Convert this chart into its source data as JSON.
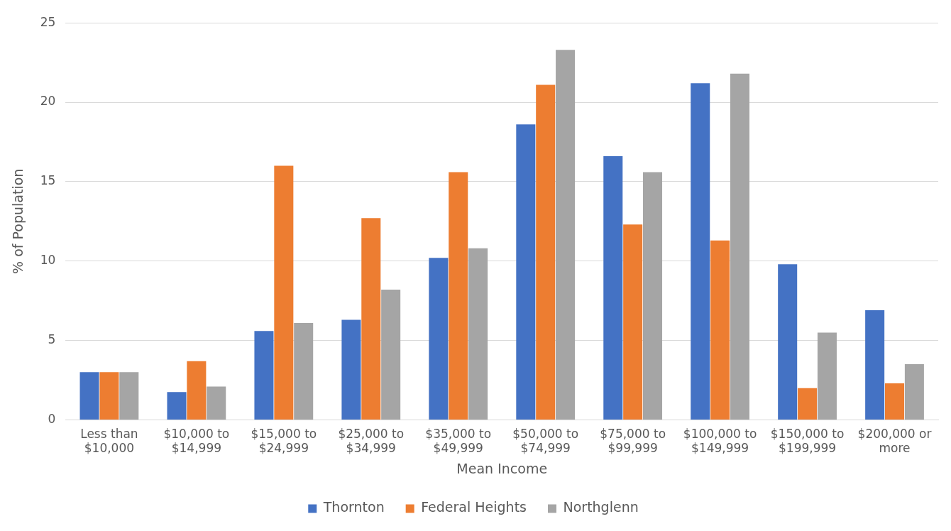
{
  "chart_data": {
    "type": "bar",
    "xlabel": "Mean Income",
    "ylabel": "% of Population",
    "categories": [
      "Less than $10,000",
      "$10,000 to $14,999",
      "$15,000 to $24,999",
      "$25,000 to $34,999",
      "$35,000 to $49,999",
      "$50,000 to $74,999",
      "$75,000 to $99,999",
      "$100,000 to $149,999",
      "$150,000 to $199,999",
      "$200,000 or more"
    ],
    "series": [
      {
        "name": "Thornton",
        "color": "#4472c4",
        "values": [
          3,
          1.75,
          5.6,
          6.3,
          10.2,
          18.6,
          16.6,
          21.2,
          9.8,
          6.9
        ]
      },
      {
        "name": "Federal Heights",
        "color": "#ed7d31",
        "values": [
          3,
          3.7,
          16,
          12.7,
          15.6,
          21.1,
          12.3,
          11.3,
          2,
          2.3
        ]
      },
      {
        "name": "Northglenn",
        "color": "#a5a5a5",
        "values": [
          3,
          2.1,
          6.1,
          8.2,
          10.8,
          23.3,
          15.6,
          21.8,
          5.5,
          3.5
        ]
      }
    ],
    "ylim": [
      0,
      25
    ],
    "yticks": [
      0,
      5,
      10,
      15,
      20,
      25
    ],
    "grid": "y",
    "legend": "bottom"
  }
}
